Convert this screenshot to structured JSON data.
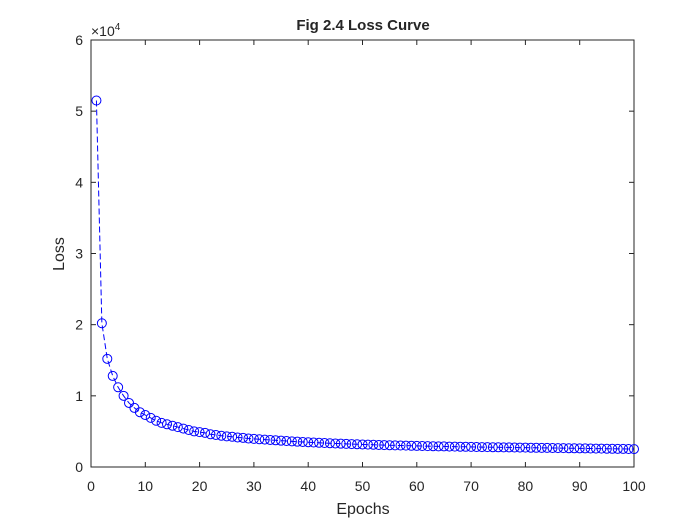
{
  "chart_data": {
    "type": "line",
    "title": "Fig 2.4 Loss Curve",
    "xlabel": "Epochs",
    "ylabel": "Loss",
    "xlim": [
      0,
      100
    ],
    "ylim": [
      0,
      60000
    ],
    "y_exponent": {
      "times": "×10",
      "power": "4"
    },
    "xticks": [
      0,
      10,
      20,
      30,
      40,
      50,
      60,
      70,
      80,
      90,
      100
    ],
    "xtick_labels": [
      "0",
      "10",
      "20",
      "30",
      "40",
      "50",
      "60",
      "70",
      "80",
      "90",
      "100"
    ],
    "yticks": [
      0,
      10000,
      20000,
      30000,
      40000,
      50000,
      60000
    ],
    "ytick_labels": [
      "0",
      "1",
      "2",
      "3",
      "4",
      "5",
      "6"
    ],
    "grid": false,
    "series_color": "#0000ff",
    "line_style": "dashed",
    "marker": "circle",
    "series": [
      {
        "x": [
          1,
          2,
          3,
          4,
          5,
          6,
          7,
          8,
          9,
          10,
          11,
          12,
          13,
          14,
          15,
          16,
          17,
          18,
          19,
          20,
          21,
          22,
          23,
          24,
          25,
          26,
          27,
          28,
          29,
          30,
          31,
          32,
          33,
          34,
          35,
          36,
          37,
          38,
          39,
          40,
          41,
          42,
          43,
          44,
          45,
          46,
          47,
          48,
          49,
          50,
          51,
          52,
          53,
          54,
          55,
          56,
          57,
          58,
          59,
          60,
          61,
          62,
          63,
          64,
          65,
          66,
          67,
          68,
          69,
          70,
          71,
          72,
          73,
          74,
          75,
          76,
          77,
          78,
          79,
          80,
          81,
          82,
          83,
          84,
          85,
          86,
          87,
          88,
          89,
          90,
          91,
          92,
          93,
          94,
          95,
          96,
          97,
          98,
          99,
          100
        ],
        "y": [
          51500,
          20200,
          15200,
          12800,
          11200,
          10000,
          9000,
          8300,
          7700,
          7300,
          6900,
          6500,
          6200,
          6000,
          5800,
          5600,
          5400,
          5200,
          5000,
          4900,
          4800,
          4600,
          4500,
          4400,
          4300,
          4250,
          4150,
          4100,
          4000,
          3950,
          3900,
          3850,
          3800,
          3750,
          3700,
          3650,
          3600,
          3560,
          3520,
          3480,
          3440,
          3400,
          3370,
          3340,
          3310,
          3280,
          3250,
          3220,
          3200,
          3170,
          3150,
          3130,
          3100,
          3080,
          3060,
          3040,
          3020,
          3000,
          2980,
          2960,
          2950,
          2930,
          2920,
          2900,
          2890,
          2870,
          2860,
          2850,
          2840,
          2830,
          2810,
          2800,
          2790,
          2780,
          2770,
          2760,
          2750,
          2740,
          2730,
          2720,
          2710,
          2700,
          2690,
          2680,
          2670,
          2660,
          2650,
          2640,
          2630,
          2620,
          2610,
          2600,
          2590,
          2580,
          2570,
          2560,
          2550,
          2540,
          2530,
          2520
        ]
      }
    ]
  }
}
